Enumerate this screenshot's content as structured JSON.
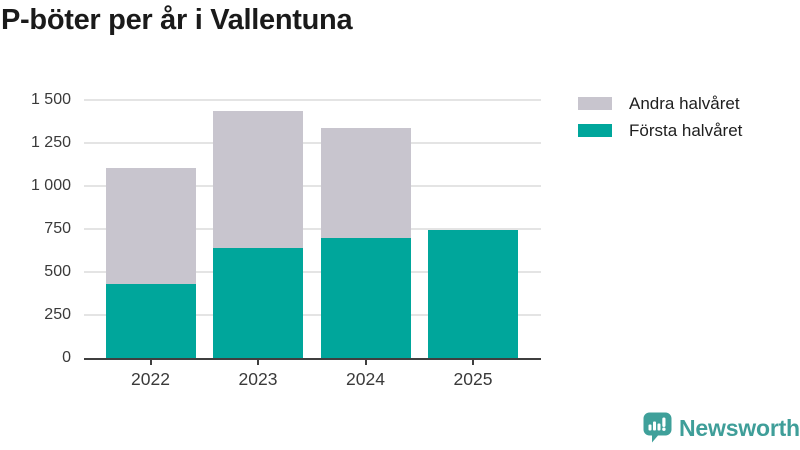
{
  "title": "P-böter per år i Vallentuna",
  "chart_data": {
    "type": "bar",
    "stacked": true,
    "title": "P-böter per år i Vallentuna",
    "categories": [
      "2022",
      "2023",
      "2024",
      "2025"
    ],
    "series": [
      {
        "name": "Första halvåret",
        "color": "#00a69b",
        "values": [
          430,
          640,
          700,
          745
        ]
      },
      {
        "name": "Andra halvåret",
        "color": "#c8c5ce",
        "values": [
          675,
          795,
          640,
          0
        ]
      }
    ],
    "xlabel": "",
    "ylabel": "",
    "ylim": [
      0,
      1500
    ],
    "yticks": [
      0,
      250,
      500,
      750,
      1000,
      1250,
      1500
    ],
    "ytick_labels": [
      "0",
      "250",
      "500",
      "750",
      "1 000",
      "1 250",
      "1 500"
    ],
    "grid": true,
    "legend_position": "top-right"
  },
  "legend": {
    "items": [
      {
        "label": "Andra halvåret",
        "color": "#c8c5ce"
      },
      {
        "label": "Första halvåret",
        "color": "#00a69b"
      }
    ]
  },
  "branding": {
    "logo_text": "Newsworthy",
    "logo_color": "#3f9e99",
    "icon": "newsworthy-speech-bubble-chart-icon"
  },
  "colors": {
    "bar_teal": "#00a69b",
    "bar_gray": "#c8c5ce",
    "gridline": "#e4e4e4",
    "axis": "#3f3f3f",
    "axis_text": "#3a3a3a",
    "title_text": "#1a1a1a",
    "background": "#ffffff"
  }
}
